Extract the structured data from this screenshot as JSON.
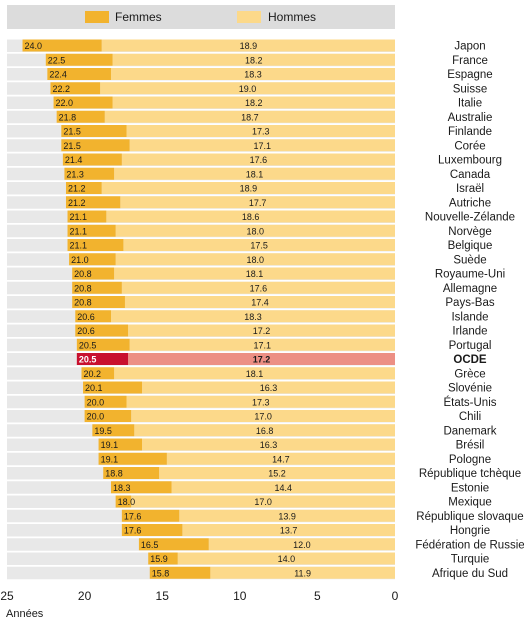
{
  "chart_data": {
    "type": "bar",
    "orientation": "horizontal-stacked",
    "title": "",
    "xlabel": "Années",
    "ylabel": "",
    "xlim": [
      25,
      0
    ],
    "x_ticks": [
      "25",
      "20",
      "15",
      "10",
      "5",
      "0"
    ],
    "legend": {
      "position": "top",
      "entries": [
        "Femmes",
        "Hommes"
      ]
    },
    "series": [
      {
        "name": "Femmes",
        "color": "#f2b32e",
        "highlight_color": "#c8102e"
      },
      {
        "name": "Hommes",
        "color": "#fcd98a",
        "highlight_color": "#ec8f84"
      }
    ],
    "highlight_category": "OCDE",
    "categories": [
      "Japon",
      "France",
      "Espagne",
      "Suisse",
      "Italie",
      "Australie",
      "Finlande",
      "Corée",
      "Luxembourg",
      "Canada",
      "Israël",
      "Autriche",
      "Nouvelle-Zélande",
      "Norvège",
      "Belgique",
      "Suède",
      "Royaume-Uni",
      "Allemagne",
      "Pays-Bas",
      "Islande",
      "Irlande",
      "Portugal",
      "OCDE",
      "Grèce",
      "Slovénie",
      "États-Unis",
      "Chili",
      "Danemark",
      "Brésil",
      "Pologne",
      "République tchèque",
      "Estonie",
      "Mexique",
      "République slovaque",
      "Hongrie",
      "Fédération de Russie",
      "Turquie",
      "Afrique du Sud"
    ],
    "femmes": [
      24.0,
      22.5,
      22.4,
      22.2,
      22.0,
      21.8,
      21.5,
      21.5,
      21.4,
      21.3,
      21.2,
      21.2,
      21.1,
      21.1,
      21.1,
      21.0,
      20.8,
      20.8,
      20.8,
      20.6,
      20.6,
      20.5,
      20.5,
      20.2,
      20.1,
      20.0,
      20.0,
      19.5,
      19.1,
      19.1,
      18.8,
      18.3,
      18.0,
      17.6,
      17.6,
      16.5,
      15.9,
      15.8
    ],
    "hommes": [
      18.9,
      18.2,
      18.3,
      19.0,
      18.2,
      18.7,
      17.3,
      17.1,
      17.6,
      18.1,
      18.9,
      17.7,
      18.6,
      18.0,
      17.5,
      18.0,
      18.1,
      17.6,
      17.4,
      18.3,
      17.2,
      17.1,
      17.2,
      18.1,
      16.3,
      17.3,
      17.0,
      16.8,
      16.3,
      14.7,
      15.2,
      14.4,
      17.0,
      13.9,
      13.7,
      12.0,
      14.0,
      11.9
    ],
    "femmes_labels": [
      "24.0",
      "22.5",
      "22.4",
      "22.2",
      "22.0",
      "21.8",
      "21.5",
      "21.5",
      "21.4",
      "21.3",
      "21.2",
      "21.2",
      "21.1",
      "21.1",
      "21.1",
      "21.0",
      "20.8",
      "20.8",
      "20.8",
      "20.6",
      "20.6",
      "20.5",
      "20.5",
      "20.2",
      "20.1",
      "20.0",
      "20.0",
      "19.5",
      "19.1",
      "19.1",
      "18.8",
      "18.3",
      "18.0",
      "17.6",
      "17.6",
      "16.5",
      "15.9",
      "15.8"
    ],
    "hommes_labels": [
      "18.9",
      "18.2",
      "18.3",
      "19.0",
      "18.2",
      "18.7",
      "17.3",
      "17.1",
      "17.6",
      "18.1",
      "18.9",
      "17.7",
      "18.6",
      "18.0",
      "17.5",
      "18.0",
      "18.1",
      "17.6",
      "17.4",
      "18.3",
      "17.2",
      "17.1",
      "17.2",
      "18.1",
      "16.3",
      "17.3",
      "17.0",
      "16.8",
      "16.3",
      "14.7",
      "15.2",
      "14.4",
      "17.0",
      "13.9",
      "13.7",
      "12.0",
      "14.0",
      "11.9"
    ],
    "grid": false,
    "colors": {
      "row_band": "#e8e8e8",
      "legend_bg": "#dcdcdc",
      "text": "#1a1a1a"
    }
  }
}
